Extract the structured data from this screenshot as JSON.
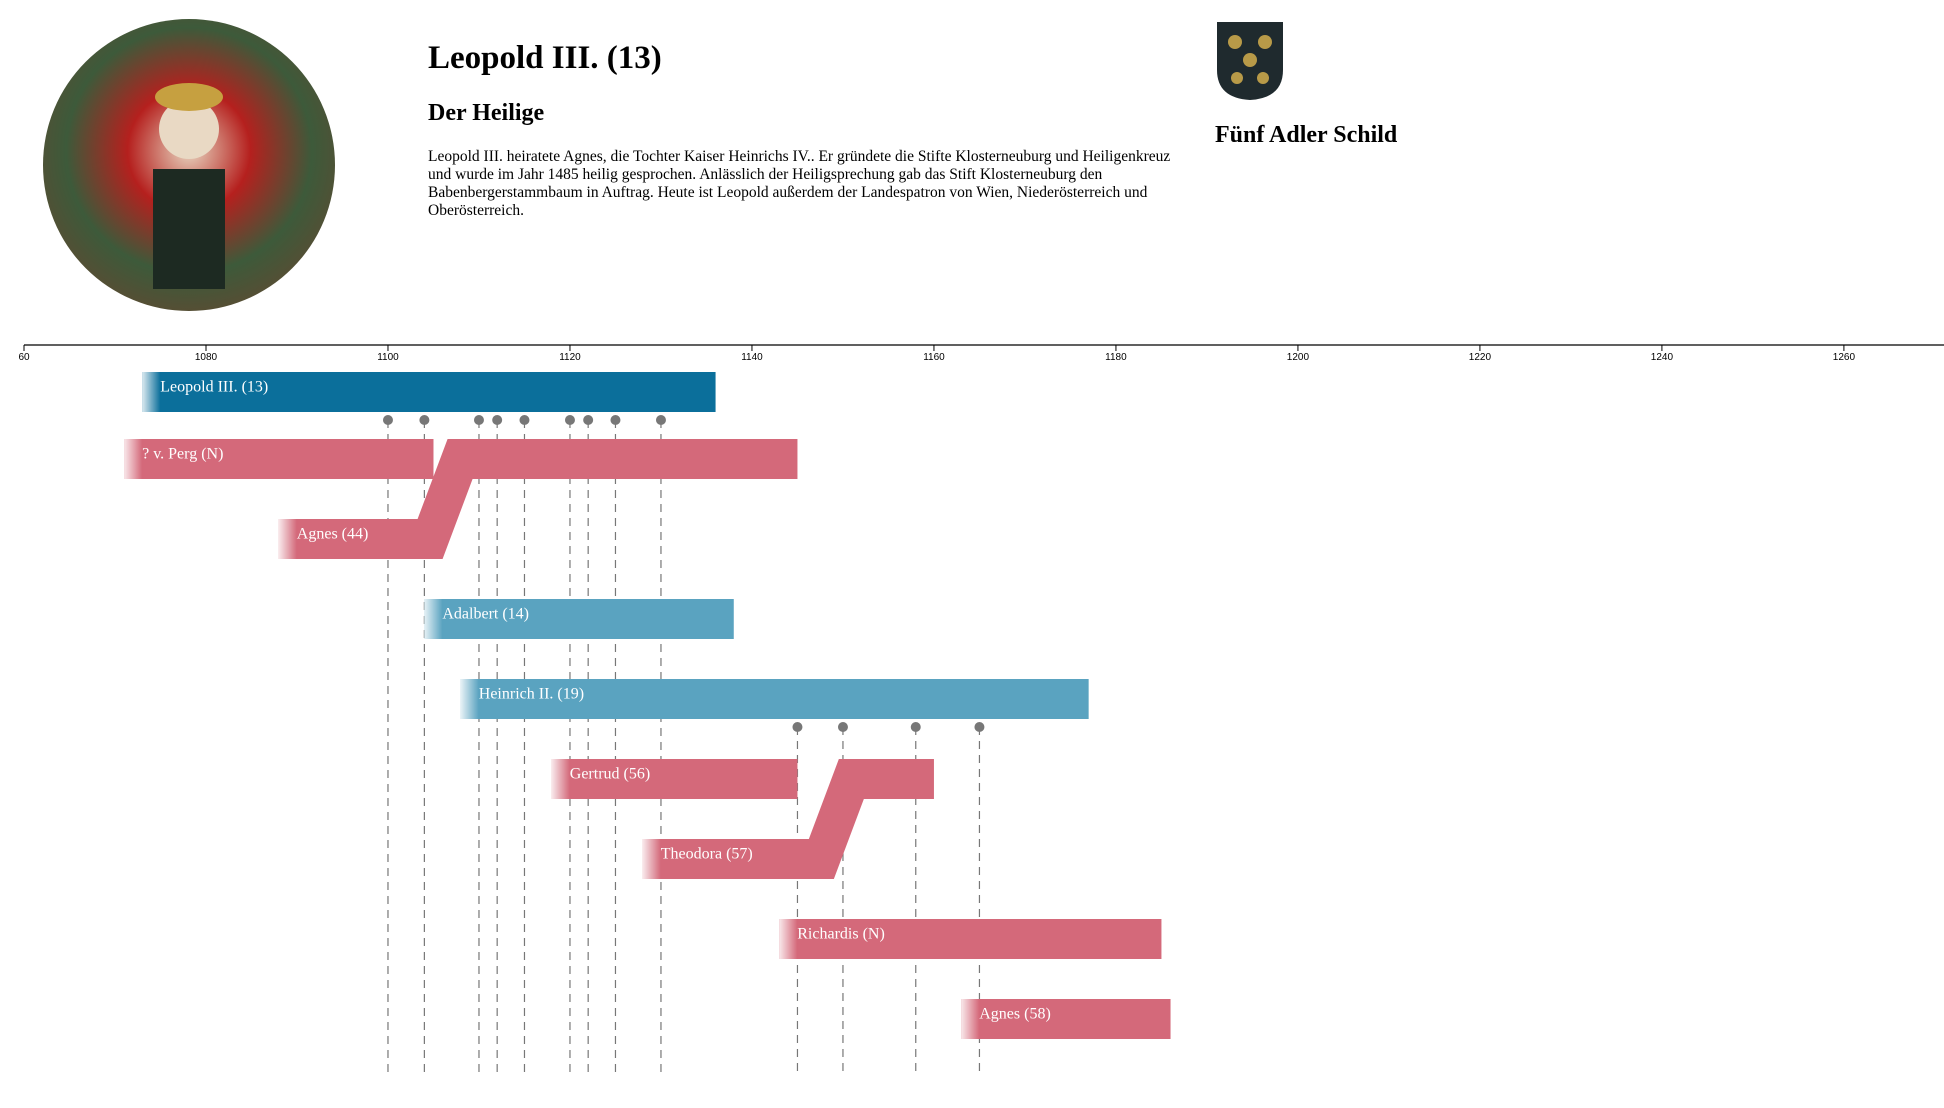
{
  "header": {
    "title": "Leopold III. (13)",
    "subtitle": "Der Heilige",
    "description": "Leopold III. heiratete Agnes, die Tochter Kaiser Heinrichs IV.. Er gründete die Stifte Klosterneuburg und Heiligenkreuz und wurde im Jahr 1485 heilig gesprochen. Anlässlich der Heiligsprechung gab das Stift Klosterneuburg den Babenbergerstammbaum in Auftrag. Heute ist Leopold außerdem der Landespatron von Wien, Niederösterreich und Oberösterreich."
  },
  "shield": {
    "label": "Fünf Adler Schild"
  },
  "timeline": {
    "xlim": [
      1060,
      1271
    ],
    "xticks": [
      {
        "value": 1060,
        "label": "60"
      },
      1080,
      1100,
      1120,
      1140,
      1160,
      1180,
      1200,
      1220,
      1240,
      1260
    ],
    "bars": [
      {
        "label": "Leopold III. (13)",
        "start": 1073,
        "end": 1136,
        "color": "#0b6f9b",
        "events": [
          1100,
          1104,
          1110,
          1112,
          1115,
          1120,
          1122,
          1125,
          1130
        ]
      },
      {
        "label": "? v. Perg (N)",
        "start": 1071,
        "end": 1105,
        "color": "#d4697a"
      },
      {
        "label": "Agnes (44)",
        "start": 1088,
        "marriage": 1106,
        "end": 1145,
        "color": "#d4697a"
      },
      {
        "label": "Adalbert (14)",
        "start": 1104,
        "end": 1138,
        "color": "#5aa3c0"
      },
      {
        "label": "Heinrich II. (19)",
        "start": 1108,
        "end": 1177,
        "color": "#5aa3c0",
        "events": [
          1145,
          1150,
          1158,
          1165
        ]
      },
      {
        "label": "Gertrud (56)",
        "start": 1118,
        "end": 1145,
        "color": "#d4697a"
      },
      {
        "label": "Theodora (57)",
        "start": 1128,
        "marriage": 1149,
        "end": 1160,
        "color": "#d4697a"
      },
      {
        "label": "Richardis (N)",
        "start": 1143,
        "end": 1185,
        "color": "#d4697a"
      },
      {
        "label": "Agnes (58)",
        "start": 1163,
        "end": 1186,
        "color": "#d4697a"
      }
    ]
  }
}
